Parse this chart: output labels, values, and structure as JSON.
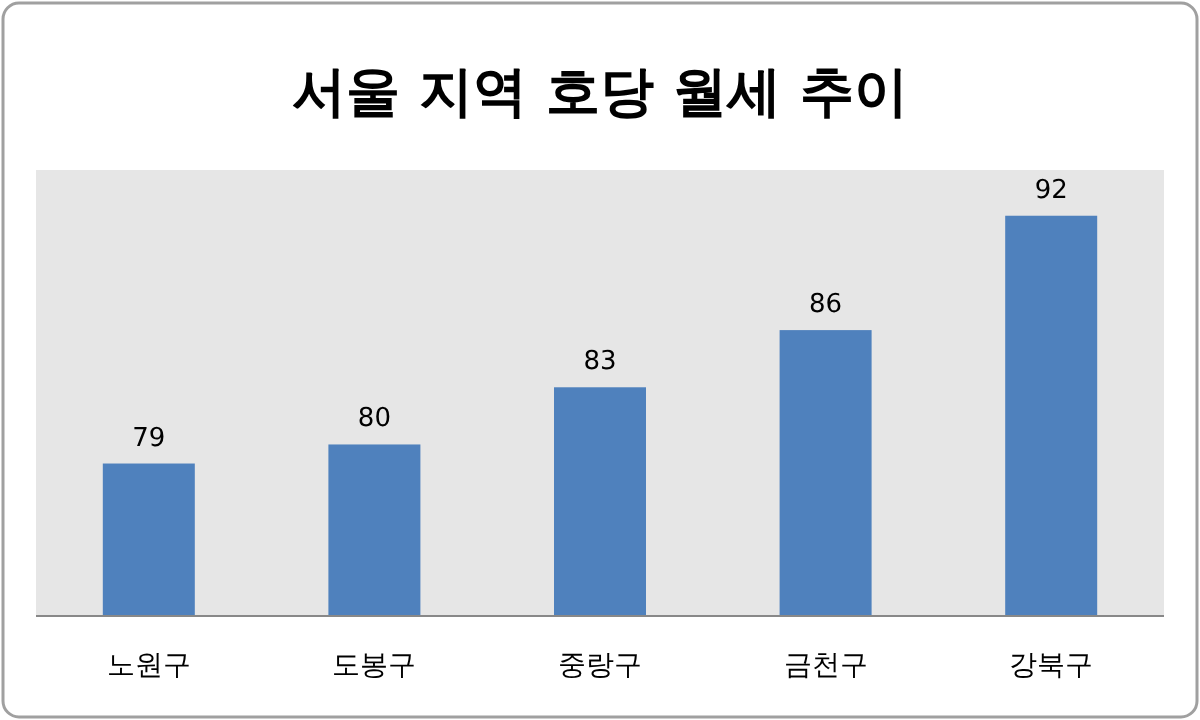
{
  "chart_data": {
    "type": "bar",
    "title": "서울 지역 호당 월세 추이",
    "categories": [
      "노원구",
      "도봉구",
      "중랑구",
      "금천구",
      "강북구"
    ],
    "values": [
      79,
      80,
      83,
      86,
      92
    ],
    "color": "#4f81bd",
    "ylim": [
      71,
      94.4
    ],
    "data_labels": true
  }
}
